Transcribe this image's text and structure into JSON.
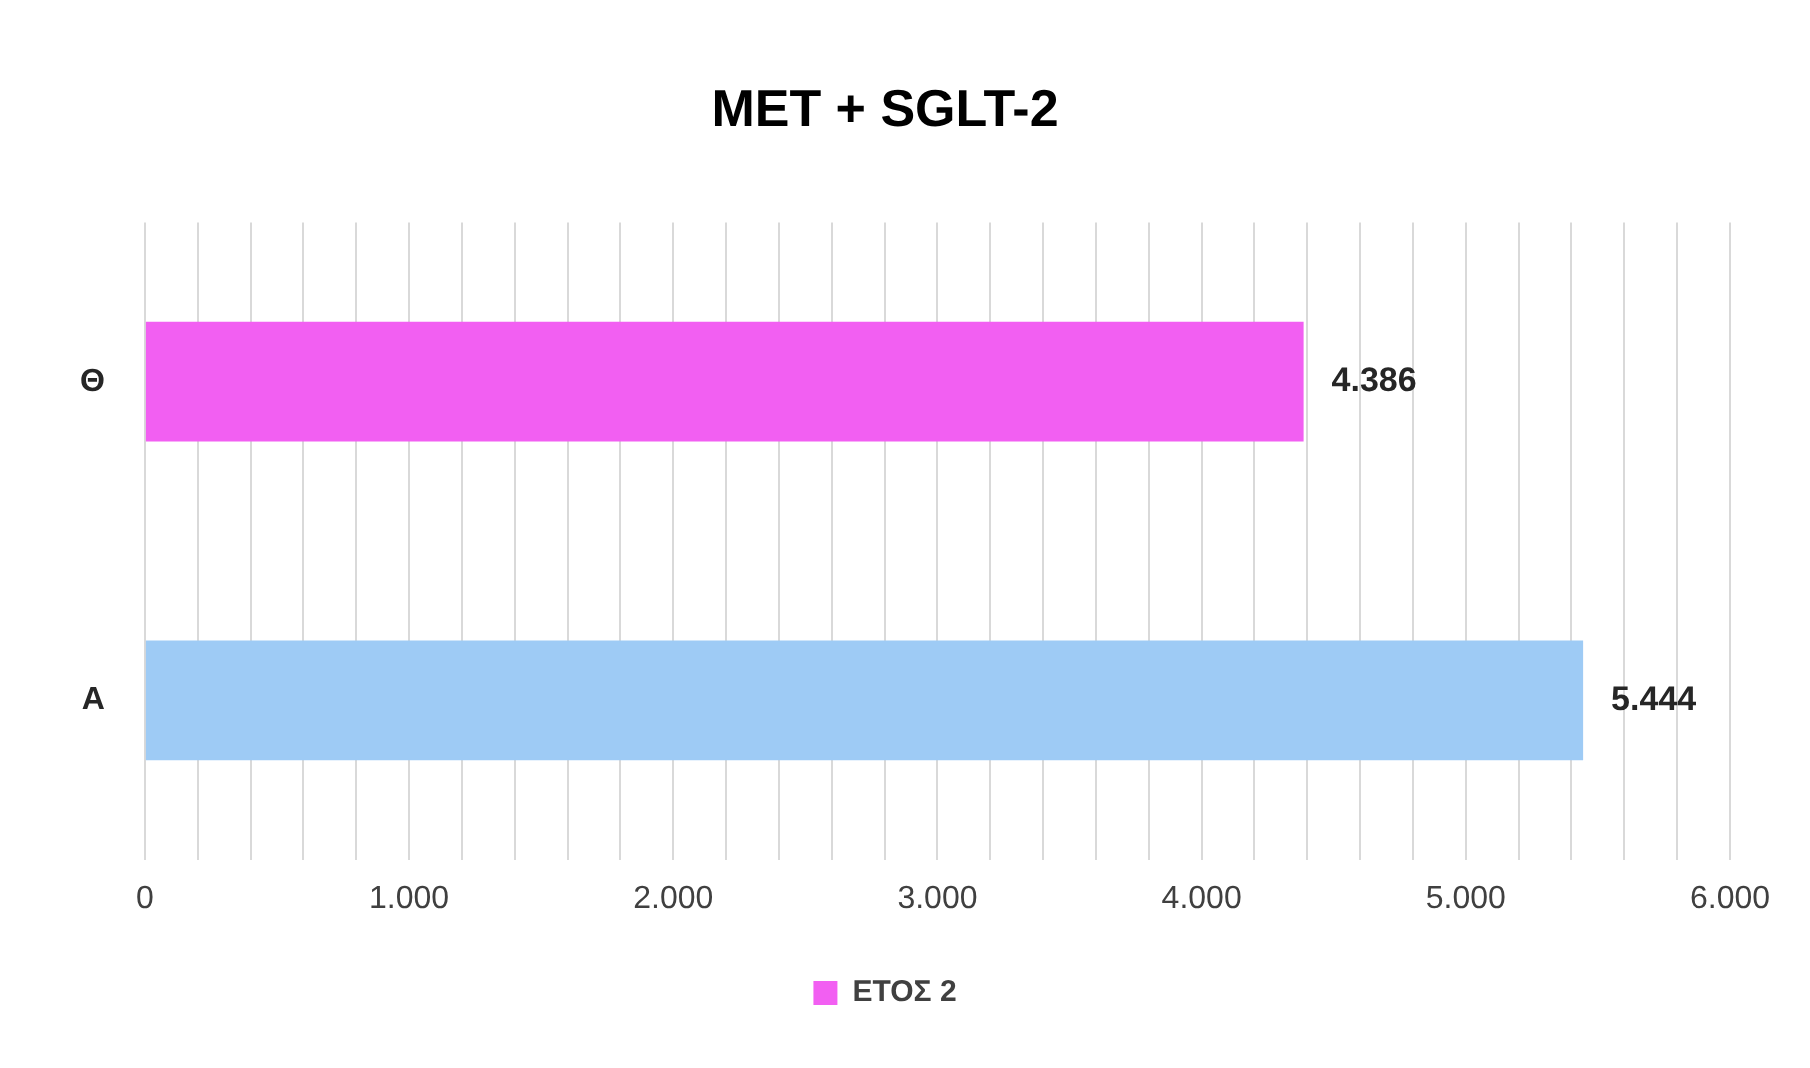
{
  "chart_data": {
    "type": "bar",
    "orientation": "horizontal",
    "title": "MET + SGLT-2",
    "categories": [
      "Θ",
      "A"
    ],
    "series": [
      {
        "name": "ΕΤΟΣ 2",
        "colors": [
          "#f25ff2",
          "#9ecbf5"
        ],
        "values": [
          4386,
          5444
        ],
        "value_labels": [
          "4.386",
          "5.444"
        ]
      }
    ],
    "xlim": [
      0,
      6000
    ],
    "xticks": [
      0,
      {
        "value": 200,
        "label": null
      },
      {
        "value": 400,
        "label": null
      },
      {
        "value": 600,
        "label": null
      },
      {
        "value": 800,
        "label": null
      },
      {
        "value": 1000,
        "label": "1.000"
      },
      {
        "value": 1200,
        "label": null
      },
      {
        "value": 1400,
        "label": null
      },
      {
        "value": 1600,
        "label": null
      },
      {
        "value": 1800,
        "label": null
      },
      {
        "value": 2000,
        "label": "2.000"
      },
      {
        "value": 2200,
        "label": null
      },
      {
        "value": 2400,
        "label": null
      },
      {
        "value": 2600,
        "label": null
      },
      {
        "value": 2800,
        "label": null
      },
      {
        "value": 3000,
        "label": "3.000"
      },
      {
        "value": 3200,
        "label": null
      },
      {
        "value": 3400,
        "label": null
      },
      {
        "value": 3600,
        "label": null
      },
      {
        "value": 3800,
        "label": null
      },
      {
        "value": 4000,
        "label": "4.000"
      },
      {
        "value": 4200,
        "label": null
      },
      {
        "value": 4400,
        "label": null
      },
      {
        "value": 4600,
        "label": null
      },
      {
        "value": 4800,
        "label": null
      },
      {
        "value": 5000,
        "label": "5.000"
      },
      {
        "value": 5200,
        "label": null
      },
      {
        "value": 5400,
        "label": null
      },
      {
        "value": 5600,
        "label": null
      },
      {
        "value": 5800,
        "label": null
      },
      {
        "value": 6000,
        "label": "6.000"
      }
    ],
    "grid": "x",
    "legend": "bottom"
  }
}
